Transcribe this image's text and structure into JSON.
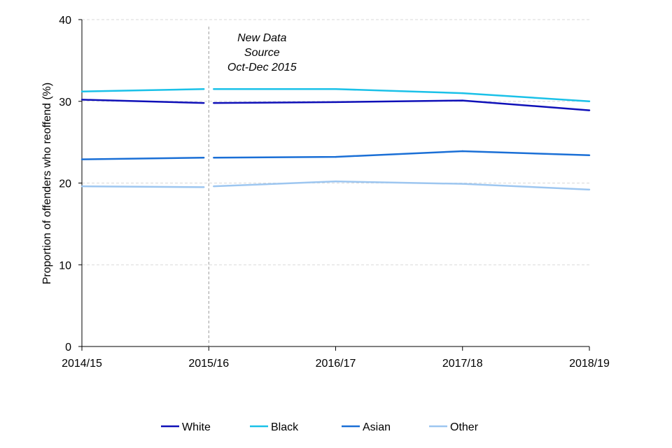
{
  "chart_data": {
    "type": "line",
    "title": "",
    "xlabel": "",
    "ylabel": "Proportion of offenders who reoffend (%)",
    "ylim": [
      0,
      40
    ],
    "yticks": [
      0,
      10,
      20,
      30,
      40
    ],
    "grid": true,
    "legend_position": "bottom",
    "categories": [
      "2014/15",
      "2015/16",
      "2016/17",
      "2017/18",
      "2018/19"
    ],
    "annotation": {
      "lines": [
        "New Data",
        "Source",
        "Oct-Dec 2015"
      ],
      "at_category": "2015/16"
    },
    "series": [
      {
        "name": "White",
        "color": "#0F10B8",
        "segments": [
          {
            "x": [
              "2014/15",
              "2015/16"
            ],
            "y": [
              30.2,
              29.8
            ]
          },
          {
            "x": [
              "2015/16",
              "2016/17",
              "2017/18",
              "2018/19"
            ],
            "y": [
              29.8,
              29.9,
              30.1,
              28.9
            ]
          }
        ]
      },
      {
        "name": "Black",
        "color": "#1AC1E8",
        "segments": [
          {
            "x": [
              "2014/15",
              "2015/16"
            ],
            "y": [
              31.2,
              31.5
            ]
          },
          {
            "x": [
              "2015/16",
              "2016/17",
              "2017/18",
              "2018/19"
            ],
            "y": [
              31.5,
              31.5,
              31.0,
              30.0
            ]
          }
        ]
      },
      {
        "name": "Asian",
        "color": "#1A6FD6",
        "segments": [
          {
            "x": [
              "2014/15",
              "2015/16"
            ],
            "y": [
              22.9,
              23.1
            ]
          },
          {
            "x": [
              "2015/16",
              "2016/17",
              "2017/18",
              "2018/19"
            ],
            "y": [
              23.1,
              23.2,
              23.9,
              23.4
            ]
          }
        ]
      },
      {
        "name": "Other",
        "color": "#9DC6F0",
        "segments": [
          {
            "x": [
              "2014/15",
              "2015/16"
            ],
            "y": [
              19.6,
              19.5
            ]
          },
          {
            "x": [
              "2015/16",
              "2016/17",
              "2017/18",
              "2018/19"
            ],
            "y": [
              19.6,
              20.2,
              19.9,
              19.2
            ]
          }
        ]
      }
    ]
  }
}
